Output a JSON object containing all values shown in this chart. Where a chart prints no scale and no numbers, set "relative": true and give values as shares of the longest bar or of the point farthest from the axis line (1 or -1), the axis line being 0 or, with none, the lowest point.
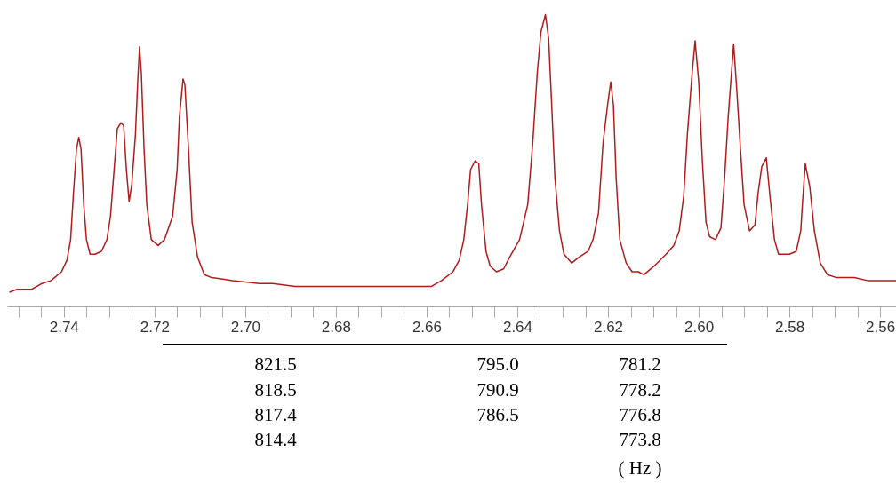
{
  "chart_data": {
    "type": "line",
    "relative": true,
    "tick_labels": "x",
    "xlim": [
      2.7525,
      2.5565
    ],
    "xticks": [
      {
        "value": 2.75,
        "label": null
      },
      {
        "value": 2.745,
        "label": null
      },
      2.74,
      {
        "value": 2.735,
        "label": null
      },
      {
        "value": 2.73,
        "label": null
      },
      {
        "value": 2.725,
        "label": null
      },
      2.72,
      {
        "value": 2.715,
        "label": null
      },
      {
        "value": 2.71,
        "label": null
      },
      {
        "value": 2.705,
        "label": null
      },
      {
        "value": 2.7,
        "label": "2.70"
      },
      {
        "value": 2.695,
        "label": null
      },
      {
        "value": 2.69,
        "label": null
      },
      {
        "value": 2.685,
        "label": null
      },
      2.68,
      {
        "value": 2.675,
        "label": null
      },
      {
        "value": 2.67,
        "label": null
      },
      {
        "value": 2.665,
        "label": null
      },
      2.66,
      {
        "value": 2.655,
        "label": null
      },
      {
        "value": 2.65,
        "label": null
      },
      {
        "value": 2.645,
        "label": null
      },
      2.64,
      {
        "value": 2.635,
        "label": null
      },
      {
        "value": 2.63,
        "label": null
      },
      {
        "value": 2.625,
        "label": null
      },
      2.62,
      {
        "value": 2.615,
        "label": null
      },
      {
        "value": 2.61,
        "label": null
      },
      {
        "value": 2.605,
        "label": null
      },
      {
        "value": 2.6,
        "label": "2.60"
      },
      {
        "value": 2.595,
        "label": null
      },
      {
        "value": 2.59,
        "label": null
      },
      {
        "value": 2.585,
        "label": null
      },
      2.58,
      {
        "value": 2.575,
        "label": null
      },
      {
        "value": 2.57,
        "label": null
      },
      {
        "value": 2.565,
        "label": null
      },
      2.56
    ],
    "series": [
      {
        "color": "#b01c1c",
        "x": [
          2.7521,
          2.7504,
          2.7472,
          2.7449,
          2.7429,
          2.7406,
          2.7394,
          2.7386,
          2.738,
          2.7373,
          2.7368,
          2.7363,
          2.7357,
          2.7351,
          2.7343,
          2.7332,
          2.7318,
          2.7306,
          2.7298,
          2.729,
          2.7283,
          2.7275,
          2.7269,
          2.7263,
          2.7257,
          2.7251,
          2.7243,
          2.7238,
          2.7234,
          2.723,
          2.7224,
          2.7218,
          2.7208,
          2.7193,
          2.7179,
          2.7161,
          2.7151,
          2.7146,
          2.7138,
          2.7134,
          2.7126,
          2.7118,
          2.7106,
          2.7091,
          2.7075,
          2.7028,
          2.6969,
          2.694,
          2.6891,
          2.6852,
          2.6754,
          2.6676,
          2.659,
          2.6568,
          2.6543,
          2.6529,
          2.6519,
          2.651,
          2.6504,
          2.6494,
          2.6486,
          2.648,
          2.647,
          2.6461,
          2.6447,
          2.6431,
          2.6418,
          2.6396,
          2.6378,
          2.6367,
          2.6357,
          2.6349,
          2.6339,
          2.6332,
          2.6326,
          2.6318,
          2.6308,
          2.6298,
          2.6281,
          2.6265,
          2.6245,
          2.6234,
          2.6222,
          2.6212,
          2.6202,
          2.6195,
          2.6189,
          2.6183,
          2.6175,
          2.6161,
          2.6148,
          2.6134,
          2.6122,
          2.6099,
          2.6073,
          2.6056,
          2.6044,
          2.6034,
          2.6026,
          2.6016,
          2.6009,
          2.6001,
          2.5993,
          2.5985,
          2.5977,
          2.5964,
          2.5952,
          2.5944,
          2.5936,
          2.5924,
          2.5917,
          2.5909,
          2.5901,
          2.5889,
          2.5877,
          2.587,
          2.5862,
          2.5852,
          2.5844,
          2.5834,
          2.5825,
          2.5801,
          2.5786,
          2.5776,
          2.5772,
          2.5766,
          2.5756,
          2.5746,
          2.5733,
          2.5717,
          2.5697,
          2.5658,
          2.5629,
          2.558,
          2.5566
        ],
        "values": [
          0.05,
          0.06,
          0.06,
          0.08,
          0.09,
          0.12,
          0.16,
          0.23,
          0.38,
          0.54,
          0.58,
          0.54,
          0.35,
          0.23,
          0.18,
          0.18,
          0.19,
          0.23,
          0.31,
          0.47,
          0.61,
          0.63,
          0.62,
          0.47,
          0.36,
          0.42,
          0.59,
          0.77,
          0.89,
          0.8,
          0.54,
          0.35,
          0.23,
          0.21,
          0.23,
          0.31,
          0.47,
          0.65,
          0.78,
          0.76,
          0.54,
          0.29,
          0.17,
          0.11,
          0.1,
          0.09,
          0.08,
          0.08,
          0.07,
          0.07,
          0.07,
          0.07,
          0.07,
          0.09,
          0.12,
          0.16,
          0.23,
          0.36,
          0.47,
          0.5,
          0.49,
          0.35,
          0.19,
          0.14,
          0.12,
          0.13,
          0.17,
          0.23,
          0.35,
          0.56,
          0.8,
          0.94,
          1.0,
          0.92,
          0.72,
          0.44,
          0.26,
          0.18,
          0.15,
          0.17,
          0.19,
          0.23,
          0.32,
          0.56,
          0.69,
          0.77,
          0.69,
          0.44,
          0.23,
          0.15,
          0.12,
          0.12,
          0.11,
          0.14,
          0.18,
          0.21,
          0.26,
          0.38,
          0.59,
          0.79,
          0.91,
          0.77,
          0.5,
          0.29,
          0.24,
          0.23,
          0.27,
          0.44,
          0.65,
          0.9,
          0.74,
          0.54,
          0.35,
          0.26,
          0.28,
          0.39,
          0.48,
          0.51,
          0.38,
          0.23,
          0.18,
          0.18,
          0.19,
          0.26,
          0.36,
          0.49,
          0.41,
          0.26,
          0.15,
          0.11,
          0.1,
          0.1,
          0.09,
          0.09,
          0.09
        ]
      }
    ],
    "annotations": [
      "821.5",
      "818.5",
      "817.4",
      "814.4",
      "795.0",
      "790.9",
      "786.5",
      "781.2",
      "778.2",
      "776.8",
      "773.8",
      "( Hz )"
    ]
  }
}
